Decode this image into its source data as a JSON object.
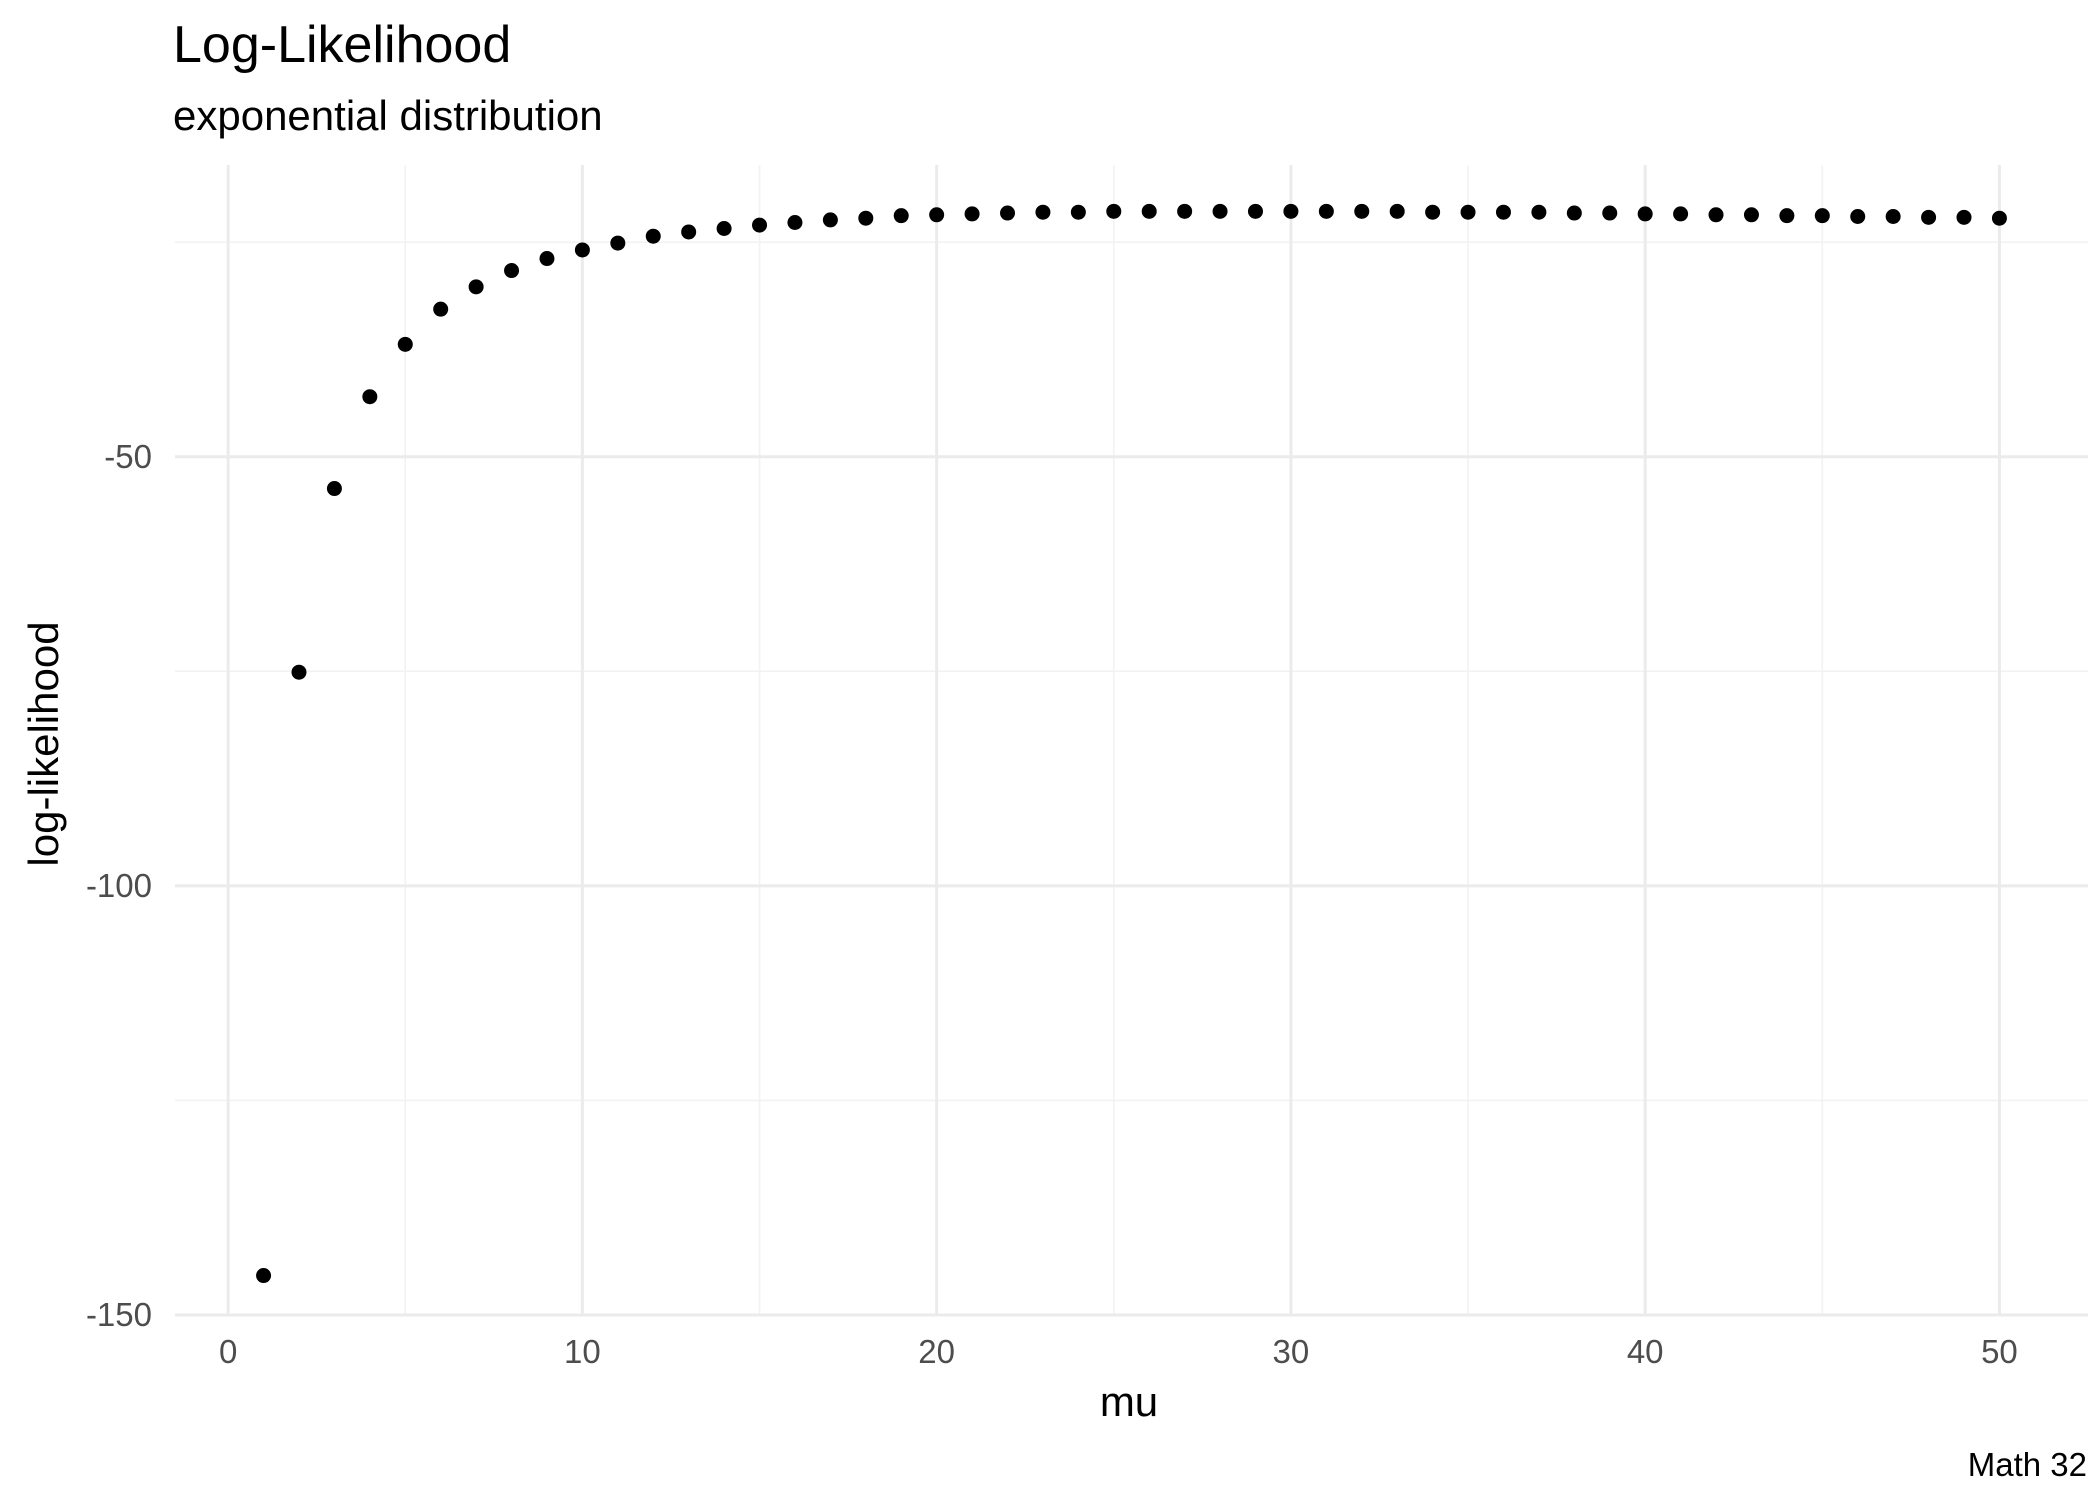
{
  "chart_data": {
    "type": "scatter",
    "title": "Log-Likelihood",
    "subtitle": "exponential distribution",
    "xlabel": "mu",
    "ylabel": "log-likelihood",
    "caption": "Math 32",
    "xlim": [
      -1.5,
      52.5
    ],
    "ylim": [
      -150,
      -16
    ],
    "x_ticks": [
      0,
      10,
      20,
      30,
      40,
      50
    ],
    "x_tick_labels": [
      "0",
      "10",
      "20",
      "30",
      "40",
      "50"
    ],
    "y_ticks": [
      -150,
      -100,
      -50
    ],
    "y_tick_labels": [
      "-150",
      "-100",
      "-50"
    ],
    "grid": true,
    "point_color": "#000000",
    "series": [
      {
        "x": [
          1,
          2,
          3,
          4,
          5,
          6,
          7,
          8,
          9,
          10,
          11,
          12,
          13,
          14,
          15,
          16,
          17,
          18,
          19,
          20,
          21,
          22,
          23,
          24,
          25,
          26,
          27,
          28,
          29,
          30,
          31,
          32,
          33,
          34,
          35,
          36,
          37,
          38,
          39,
          40,
          41,
          42,
          43,
          44,
          45,
          46,
          47,
          48,
          49,
          50
        ],
        "y": [
          -145.4,
          -75.1,
          -53.7,
          -43.0,
          -36.9,
          -32.8,
          -30.2,
          -28.3,
          -26.9,
          -25.9,
          -25.1,
          -24.3,
          -23.8,
          -23.4,
          -23.0,
          -22.7,
          -22.4,
          -22.2,
          -21.9,
          -21.8,
          -21.7,
          -21.6,
          -21.5,
          -21.5,
          -21.4,
          -21.4,
          -21.4,
          -21.4,
          -21.4,
          -21.4,
          -21.4,
          -21.4,
          -21.4,
          -21.5,
          -21.5,
          -21.5,
          -21.5,
          -21.6,
          -21.6,
          -21.7,
          -21.7,
          -21.8,
          -21.8,
          -21.9,
          -21.9,
          -22.0,
          -22.0,
          -22.1,
          -22.1,
          -22.2
        ]
      }
    ]
  }
}
